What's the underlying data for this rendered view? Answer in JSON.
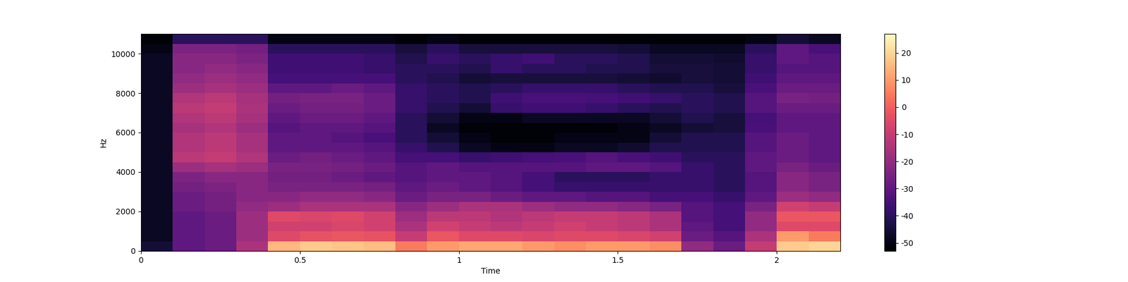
{
  "chart_data": {
    "type": "heatmap",
    "x_label": "Time",
    "y_label": "Hz",
    "xlim": [
      0,
      2.2
    ],
    "xticks": [
      0,
      0.5,
      1,
      1.5,
      2
    ],
    "ylim": [
      0,
      11000
    ],
    "yticks": [
      0,
      2000,
      4000,
      6000,
      8000,
      10000
    ],
    "x_edges": [
      0,
      0.1,
      0.2,
      0.3,
      0.4,
      0.5,
      0.6,
      0.7,
      0.8,
      0.9,
      1.0,
      1.1,
      1.2,
      1.3,
      1.4,
      1.5,
      1.6,
      1.7,
      1.8,
      1.9,
      2.0,
      2.1,
      2.2
    ],
    "y_edges": [
      0,
      500,
      1000,
      1500,
      2000,
      2500,
      3000,
      3500,
      4000,
      4500,
      5000,
      5500,
      6000,
      6500,
      7000,
      7500,
      8000,
      8500,
      9000,
      9500,
      10000,
      10500,
      11000
    ],
    "cells": [
      [
        -45,
        -30,
        -28,
        -15,
        15,
        18,
        17,
        16,
        5,
        10,
        12,
        12,
        10,
        8,
        10,
        10,
        8,
        -20,
        -28,
        -10,
        18,
        20
      ],
      [
        -48,
        -30,
        -28,
        -18,
        -5,
        -3,
        -2,
        -3,
        -10,
        -2,
        -5,
        -5,
        -6,
        -5,
        -5,
        -6,
        -8,
        -28,
        -32,
        -15,
        10,
        5
      ],
      [
        -48,
        -30,
        -28,
        -18,
        -8,
        -8,
        -6,
        -8,
        -15,
        -8,
        -10,
        -12,
        -10,
        -8,
        -10,
        -12,
        -15,
        -30,
        -35,
        -20,
        -5,
        -5
      ],
      [
        -48,
        -30,
        -28,
        -18,
        -5,
        -6,
        -5,
        -8,
        -18,
        -12,
        -12,
        -14,
        -12,
        -10,
        -10,
        -12,
        -15,
        -32,
        -35,
        -20,
        -2,
        -2
      ],
      [
        -48,
        -28,
        -26,
        -20,
        -18,
        -15,
        -15,
        -15,
        -22,
        -18,
        -15,
        -15,
        -18,
        -20,
        -20,
        -22,
        -25,
        -32,
        -35,
        -25,
        -8,
        -10
      ],
      [
        -48,
        -28,
        -26,
        -22,
        -22,
        -20,
        -20,
        -22,
        -28,
        -25,
        -25,
        -28,
        -30,
        -30,
        -32,
        -32,
        -35,
        -35,
        -38,
        -30,
        -18,
        -20
      ],
      [
        -48,
        -26,
        -24,
        -22,
        -25,
        -25,
        -25,
        -26,
        -30,
        -28,
        -30,
        -32,
        -35,
        -38,
        -38,
        -38,
        -38,
        -38,
        -40,
        -32,
        -22,
        -25
      ],
      [
        -48,
        -24,
        -22,
        -22,
        -26,
        -26,
        -28,
        -30,
        -32,
        -30,
        -30,
        -32,
        -35,
        -40,
        -40,
        -40,
        -38,
        -38,
        -40,
        -32,
        -22,
        -25
      ],
      [
        -48,
        -18,
        -16,
        -18,
        -25,
        -25,
        -26,
        -28,
        -32,
        -30,
        -32,
        -32,
        -32,
        -32,
        -30,
        -30,
        -32,
        -38,
        -40,
        -30,
        -25,
        -28
      ],
      [
        -48,
        -12,
        -10,
        -14,
        -28,
        -26,
        -28,
        -30,
        -35,
        -35,
        -38,
        -36,
        -35,
        -34,
        -32,
        -34,
        -36,
        -40,
        -40,
        -30,
        -28,
        -30
      ],
      [
        -48,
        -14,
        -12,
        -16,
        -30,
        -30,
        -30,
        -32,
        -38,
        -42,
        -48,
        -50,
        -50,
        -48,
        -48,
        -46,
        -42,
        -42,
        -42,
        -32,
        -28,
        -30
      ],
      [
        -48,
        -14,
        -12,
        -16,
        -30,
        -30,
        -32,
        -34,
        -40,
        -45,
        -50,
        -52,
        -52,
        -50,
        -50,
        -50,
        -45,
        -42,
        -42,
        -32,
        -28,
        -30
      ],
      [
        -48,
        -16,
        -14,
        -18,
        -32,
        -30,
        -30,
        -32,
        -40,
        -48,
        -52,
        -52,
        -52,
        -52,
        -52,
        -50,
        -48,
        -45,
        -44,
        -34,
        -30,
        -30
      ],
      [
        -48,
        -14,
        -12,
        -16,
        -30,
        -28,
        -28,
        -30,
        -40,
        -45,
        -50,
        -50,
        -48,
        -48,
        -48,
        -48,
        -45,
        -42,
        -44,
        -35,
        -30,
        -30
      ],
      [
        -48,
        -12,
        -10,
        -15,
        -28,
        -26,
        -26,
        -28,
        -38,
        -42,
        -45,
        -38,
        -36,
        -36,
        -38,
        -40,
        -42,
        -40,
        -42,
        -32,
        -28,
        -28
      ],
      [
        -48,
        -14,
        -12,
        -16,
        -26,
        -25,
        -25,
        -28,
        -38,
        -40,
        -42,
        -36,
        -34,
        -34,
        -35,
        -36,
        -38,
        -40,
        -42,
        -32,
        -25,
        -26
      ],
      [
        -48,
        -18,
        -16,
        -18,
        -30,
        -30,
        -28,
        -30,
        -38,
        -40,
        -42,
        -40,
        -38,
        -38,
        -38,
        -40,
        -42,
        -42,
        -44,
        -34,
        -28,
        -28
      ],
      [
        -48,
        -20,
        -18,
        -20,
        -35,
        -35,
        -35,
        -35,
        -40,
        -42,
        -45,
        -44,
        -44,
        -44,
        -44,
        -45,
        -46,
        -44,
        -45,
        -36,
        -30,
        -30
      ],
      [
        -48,
        -22,
        -20,
        -22,
        -36,
        -36,
        -36,
        -38,
        -40,
        -40,
        -42,
        -38,
        -40,
        -40,
        -42,
        -42,
        -44,
        -44,
        -45,
        -38,
        -32,
        -32
      ],
      [
        -48,
        -22,
        -22,
        -24,
        -36,
        -36,
        -36,
        -38,
        -42,
        -38,
        -40,
        -38,
        -36,
        -40,
        -40,
        -42,
        -45,
        -45,
        -46,
        -38,
        -30,
        -32
      ],
      [
        -50,
        -24,
        -24,
        -26,
        -40,
        -40,
        -40,
        -40,
        -44,
        -40,
        -44,
        -44,
        -44,
        -44,
        -44,
        -45,
        -48,
        -48,
        -48,
        -40,
        -30,
        -34
      ],
      [
        -52,
        -40,
        -40,
        -40,
        -50,
        -50,
        -50,
        -50,
        -52,
        -50,
        -52,
        -52,
        -52,
        -52,
        -52,
        -52,
        -52,
        -52,
        -52,
        -50,
        -45,
        -48
      ]
    ],
    "color_range": [
      -53,
      27
    ],
    "color_ticks": [
      20,
      10,
      0,
      -10,
      -20,
      -30,
      -40,
      -50
    ]
  }
}
